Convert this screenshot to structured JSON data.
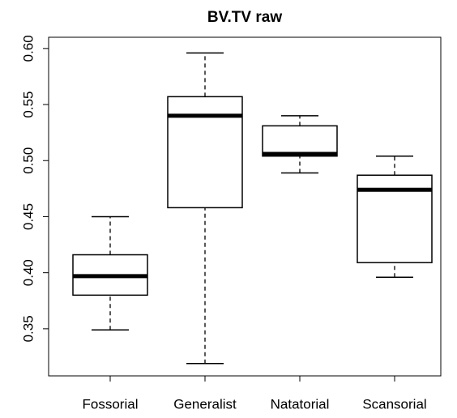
{
  "chart_data": {
    "type": "box",
    "title": "BV.TV raw",
    "categories": [
      "Fossorial",
      "Generalist",
      "Natatorial",
      "Scansorial"
    ],
    "values": [
      {
        "min": 0.349,
        "q1": 0.38,
        "median": 0.397,
        "q3": 0.416,
        "max": 0.45
      },
      {
        "min": 0.319,
        "q1": 0.458,
        "median": 0.54,
        "q3": 0.557,
        "max": 0.596
      },
      {
        "min": 0.489,
        "q1": 0.504,
        "median": 0.506,
        "q3": 0.531,
        "max": 0.54
      },
      {
        "min": 0.396,
        "q1": 0.409,
        "median": 0.474,
        "q3": 0.487,
        "max": 0.504
      }
    ],
    "color": "#ffffff",
    "ylim": [
      0.308,
      0.61
    ],
    "yticks": [
      0.35,
      {
        "value": 0.4,
        "label": "0.40"
      },
      0.45,
      {
        "value": 0.5,
        "label": "0.50"
      },
      0.55,
      {
        "value": 0.6,
        "label": "0.60"
      }
    ]
  }
}
